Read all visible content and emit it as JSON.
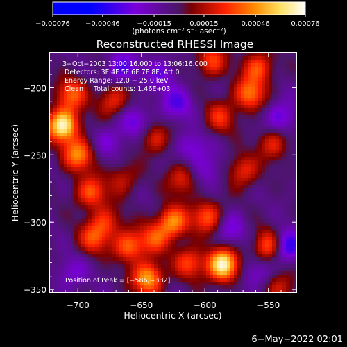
{
  "chart_data": {
    "type": "heatmap",
    "title": "Reconstructed RHESSI Image",
    "xlabel": "Heliocentric X (arcsec)",
    "ylabel": "Heliocentric Y (arcsec)",
    "xlim": [
      -722,
      -528
    ],
    "ylim": [
      -352,
      -174
    ],
    "xticks": [
      -700,
      -650,
      -600,
      -550
    ],
    "yticks": [
      -200,
      -250,
      -300,
      -350
    ],
    "xtick_labels": [
      "−700",
      "−650",
      "−600",
      "−550"
    ],
    "ytick_labels": [
      "−200",
      "−250",
      "−300",
      "−350"
    ],
    "colorbar": {
      "ticks": [
        -0.00076,
        -0.00046,
        -0.00015,
        0.00015,
        0.00046,
        0.00076
      ],
      "tick_labels": [
        "−0.00076",
        "−0.00046",
        "−0.00015",
        "0.00015",
        "0.00046",
        "0.00076"
      ],
      "units_label": "(photons cm⁻² s⁻¹ asec⁻²)",
      "range": [
        -0.00076,
        0.00076
      ]
    },
    "annotations": [
      "3−Oct−2003 13:00:16.000 to 13:06:16.000",
      "Detectors: 3F 4F 5F 6F 7F 8F, Att 0",
      "Energy Range: 12.0 − 25.0 keV",
      "Clean     Total counts: 1.46E+03"
    ],
    "peak_label": "Position of Peak = [−586,−332]",
    "peak_position": [
      -586,
      -332
    ],
    "hotspots": [
      {
        "x": -712,
        "y": -228,
        "v": 0.00074
      },
      {
        "x": -705,
        "y": -205,
        "v": 0.0004
      },
      {
        "x": -700,
        "y": -250,
        "v": 0.00048
      },
      {
        "x": -690,
        "y": -278,
        "v": 0.0004
      },
      {
        "x": -688,
        "y": -312,
        "v": 0.00034
      },
      {
        "x": -678,
        "y": -300,
        "v": 0.0003
      },
      {
        "x": -672,
        "y": -210,
        "v": 0.00032
      },
      {
        "x": -665,
        "y": -268,
        "v": 0.00024
      },
      {
        "x": -660,
        "y": -318,
        "v": 0.00042
      },
      {
        "x": -645,
        "y": -342,
        "v": 0.00056
      },
      {
        "x": -640,
        "y": -312,
        "v": 0.00034
      },
      {
        "x": -640,
        "y": -238,
        "v": 0.00028
      },
      {
        "x": -625,
        "y": -300,
        "v": 0.0005
      },
      {
        "x": -618,
        "y": -268,
        "v": 0.0003
      },
      {
        "x": -612,
        "y": -330,
        "v": 0.00036
      },
      {
        "x": -598,
        "y": -296,
        "v": 0.0004
      },
      {
        "x": -595,
        "y": -180,
        "v": 0.00036
      },
      {
        "x": -588,
        "y": -222,
        "v": 0.0003
      },
      {
        "x": -586,
        "y": -332,
        "v": 0.00076
      },
      {
        "x": -570,
        "y": -262,
        "v": 0.00032
      },
      {
        "x": -565,
        "y": -205,
        "v": 0.00045
      },
      {
        "x": -558,
        "y": -185,
        "v": 0.00038
      },
      {
        "x": -550,
        "y": -318,
        "v": 0.00042
      },
      {
        "x": -546,
        "y": -242,
        "v": 0.0003
      },
      {
        "x": -540,
        "y": -348,
        "v": 0.00026
      }
    ],
    "coldspots": [
      {
        "x": -665,
        "y": -185,
        "v": -0.0003
      },
      {
        "x": -655,
        "y": -225,
        "v": -0.00025
      },
      {
        "x": -622,
        "y": -212,
        "v": -0.00028
      },
      {
        "x": -610,
        "y": -245,
        "v": -0.00024
      },
      {
        "x": -598,
        "y": -262,
        "v": -0.0002
      },
      {
        "x": -675,
        "y": -240,
        "v": -0.0002
      },
      {
        "x": -705,
        "y": -338,
        "v": -0.0002
      },
      {
        "x": -535,
        "y": -318,
        "v": -0.00042
      },
      {
        "x": -540,
        "y": -222,
        "v": -0.00028
      },
      {
        "x": -580,
        "y": -305,
        "v": -0.00022
      },
      {
        "x": -560,
        "y": -338,
        "v": -0.0002
      },
      {
        "x": -635,
        "y": -190,
        "v": -0.00022
      }
    ]
  },
  "footer": {
    "date": "6−May−2022 02:01"
  }
}
